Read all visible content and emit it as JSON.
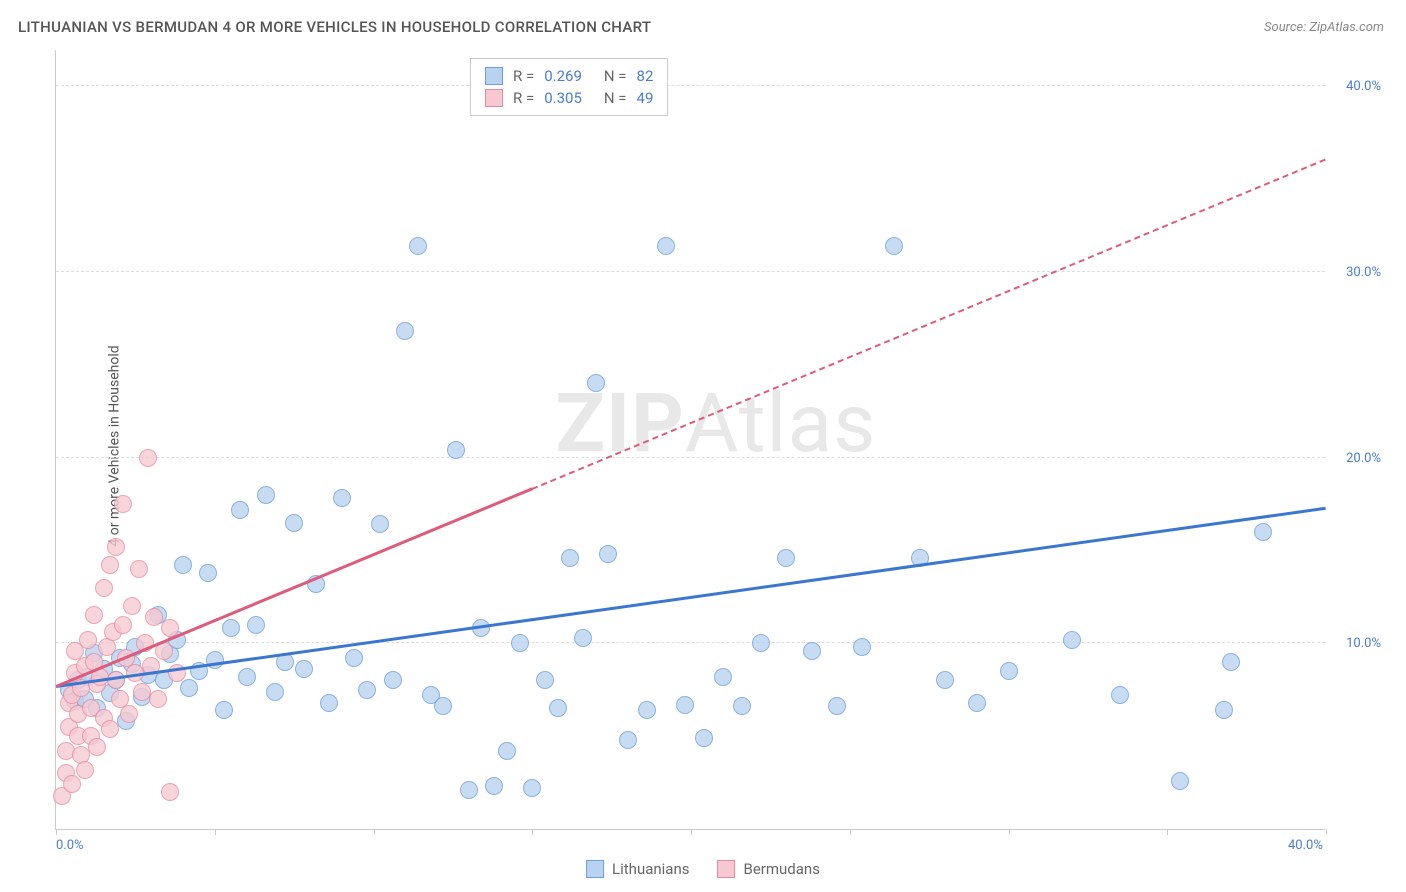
{
  "title": "LITHUANIAN VS BERMUDAN 4 OR MORE VEHICLES IN HOUSEHOLD CORRELATION CHART",
  "source_label": "Source: ZipAtlas.com",
  "y_axis_label": "4 or more Vehicles in Household",
  "watermark": {
    "bold": "ZIP",
    "light": "Atlas"
  },
  "chart": {
    "type": "scatter",
    "background_color": "#ffffff",
    "grid_color": "#dddddd",
    "axis_color": "#cccccc",
    "tick_label_color": "#4a7ec9",
    "xlim": [
      0,
      40
    ],
    "ylim": [
      0,
      42
    ],
    "x_ticks": [
      0,
      5,
      10,
      15,
      20,
      25,
      30,
      35,
      40
    ],
    "x_tick_labels": {
      "0": "0.0%",
      "40": "40.0%"
    },
    "y_ticks": [
      10,
      20,
      30,
      40
    ],
    "y_tick_labels": {
      "10": "10.0%",
      "20": "20.0%",
      "30": "30.0%",
      "40": "40.0%"
    },
    "marker_radius": 9,
    "marker_stroke_width": 1.5,
    "series": [
      {
        "name": "Lithuanians",
        "fill_color": "#b8d2f0",
        "stroke_color": "#6a9fd8",
        "trend_color": "#3b76d1",
        "trend_width": 2.5,
        "R": "0.269",
        "N": "82",
        "trend": {
          "x1": 0,
          "y1": 7.6,
          "x2": 40,
          "y2": 17.2,
          "solid_until_x": 40
        },
        "points": [
          [
            0.4,
            7.5
          ],
          [
            0.6,
            6.9
          ],
          [
            0.7,
            8.0
          ],
          [
            0.9,
            7.0
          ],
          [
            1.0,
            8.2
          ],
          [
            1.2,
            9.5
          ],
          [
            1.3,
            6.5
          ],
          [
            1.5,
            8.6
          ],
          [
            1.7,
            7.3
          ],
          [
            1.9,
            8.0
          ],
          [
            2.0,
            9.2
          ],
          [
            2.2,
            5.8
          ],
          [
            2.4,
            8.9
          ],
          [
            2.5,
            9.8
          ],
          [
            2.7,
            7.1
          ],
          [
            2.9,
            8.3
          ],
          [
            3.2,
            11.5
          ],
          [
            3.4,
            8.0
          ],
          [
            3.6,
            9.4
          ],
          [
            3.8,
            10.2
          ],
          [
            4.0,
            14.2
          ],
          [
            4.2,
            7.6
          ],
          [
            4.5,
            8.5
          ],
          [
            4.8,
            13.8
          ],
          [
            5.0,
            9.1
          ],
          [
            5.3,
            6.4
          ],
          [
            5.5,
            10.8
          ],
          [
            5.8,
            17.2
          ],
          [
            6.0,
            8.2
          ],
          [
            6.3,
            11.0
          ],
          [
            6.6,
            18.0
          ],
          [
            6.9,
            7.4
          ],
          [
            7.2,
            9.0
          ],
          [
            7.5,
            16.5
          ],
          [
            7.8,
            8.6
          ],
          [
            8.2,
            13.2
          ],
          [
            8.6,
            6.8
          ],
          [
            9.0,
            17.8
          ],
          [
            9.4,
            9.2
          ],
          [
            9.8,
            7.5
          ],
          [
            10.2,
            16.4
          ],
          [
            10.6,
            8.0
          ],
          [
            11.0,
            26.8
          ],
          [
            11.4,
            31.4
          ],
          [
            11.8,
            7.2
          ],
          [
            12.2,
            6.6
          ],
          [
            12.6,
            20.4
          ],
          [
            13.0,
            2.1
          ],
          [
            13.4,
            10.8
          ],
          [
            13.8,
            2.3
          ],
          [
            14.2,
            4.2
          ],
          [
            14.6,
            10.0
          ],
          [
            15.0,
            2.2
          ],
          [
            15.4,
            8.0
          ],
          [
            15.8,
            6.5
          ],
          [
            16.2,
            14.6
          ],
          [
            16.6,
            10.3
          ],
          [
            17.0,
            24.0
          ],
          [
            17.4,
            14.8
          ],
          [
            18.0,
            4.8
          ],
          [
            18.6,
            6.4
          ],
          [
            19.2,
            31.4
          ],
          [
            19.8,
            6.7
          ],
          [
            20.4,
            4.9
          ],
          [
            21.0,
            8.2
          ],
          [
            21.6,
            6.6
          ],
          [
            22.2,
            10.0
          ],
          [
            23.0,
            14.6
          ],
          [
            23.8,
            9.6
          ],
          [
            24.6,
            6.6
          ],
          [
            25.4,
            9.8
          ],
          [
            26.4,
            31.4
          ],
          [
            27.2,
            14.6
          ],
          [
            28.0,
            8.0
          ],
          [
            29.0,
            6.8
          ],
          [
            32.0,
            10.2
          ],
          [
            35.4,
            2.6
          ],
          [
            38.0,
            16.0
          ],
          [
            36.8,
            6.4
          ],
          [
            30.0,
            8.5
          ],
          [
            33.5,
            7.2
          ],
          [
            37.0,
            9.0
          ]
        ]
      },
      {
        "name": "Bermudans",
        "fill_color": "#f7c8d2",
        "stroke_color": "#e88ba0",
        "trend_color": "#dd5b7b",
        "trend_width": 2.5,
        "R": "0.305",
        "N": "49",
        "trend": {
          "x1": 0,
          "y1": 7.6,
          "x2": 40,
          "y2": 36.0,
          "solid_until_x": 15
        },
        "points": [
          [
            0.2,
            1.8
          ],
          [
            0.3,
            3.0
          ],
          [
            0.3,
            4.2
          ],
          [
            0.4,
            5.5
          ],
          [
            0.4,
            6.8
          ],
          [
            0.5,
            2.4
          ],
          [
            0.5,
            7.2
          ],
          [
            0.6,
            8.4
          ],
          [
            0.6,
            9.6
          ],
          [
            0.7,
            5.0
          ],
          [
            0.7,
            6.2
          ],
          [
            0.8,
            4.0
          ],
          [
            0.8,
            7.6
          ],
          [
            0.9,
            8.8
          ],
          [
            0.9,
            3.2
          ],
          [
            1.0,
            10.2
          ],
          [
            1.1,
            6.5
          ],
          [
            1.1,
            5.0
          ],
          [
            1.2,
            9.0
          ],
          [
            1.2,
            11.5
          ],
          [
            1.3,
            7.8
          ],
          [
            1.3,
            4.4
          ],
          [
            1.4,
            8.2
          ],
          [
            1.5,
            13.0
          ],
          [
            1.5,
            6.0
          ],
          [
            1.6,
            9.8
          ],
          [
            1.7,
            14.2
          ],
          [
            1.7,
            5.4
          ],
          [
            1.8,
            10.6
          ],
          [
            1.9,
            8.0
          ],
          [
            1.9,
            15.2
          ],
          [
            2.0,
            7.0
          ],
          [
            2.1,
            11.0
          ],
          [
            2.1,
            17.5
          ],
          [
            2.2,
            9.2
          ],
          [
            2.3,
            6.2
          ],
          [
            2.4,
            12.0
          ],
          [
            2.5,
            8.4
          ],
          [
            2.6,
            14.0
          ],
          [
            2.7,
            7.4
          ],
          [
            2.8,
            10.0
          ],
          [
            2.9,
            20.0
          ],
          [
            3.0,
            8.8
          ],
          [
            3.1,
            11.4
          ],
          [
            3.2,
            7.0
          ],
          [
            3.4,
            9.6
          ],
          [
            3.6,
            10.8
          ],
          [
            3.6,
            2.0
          ],
          [
            3.8,
            8.4
          ]
        ]
      }
    ]
  },
  "legend_top": {
    "R_label": "R =",
    "N_label": "N ="
  },
  "legend_bottom": {
    "items": [
      {
        "label": "Lithuanians",
        "series": 0
      },
      {
        "label": "Bermudans",
        "series": 1
      }
    ]
  }
}
